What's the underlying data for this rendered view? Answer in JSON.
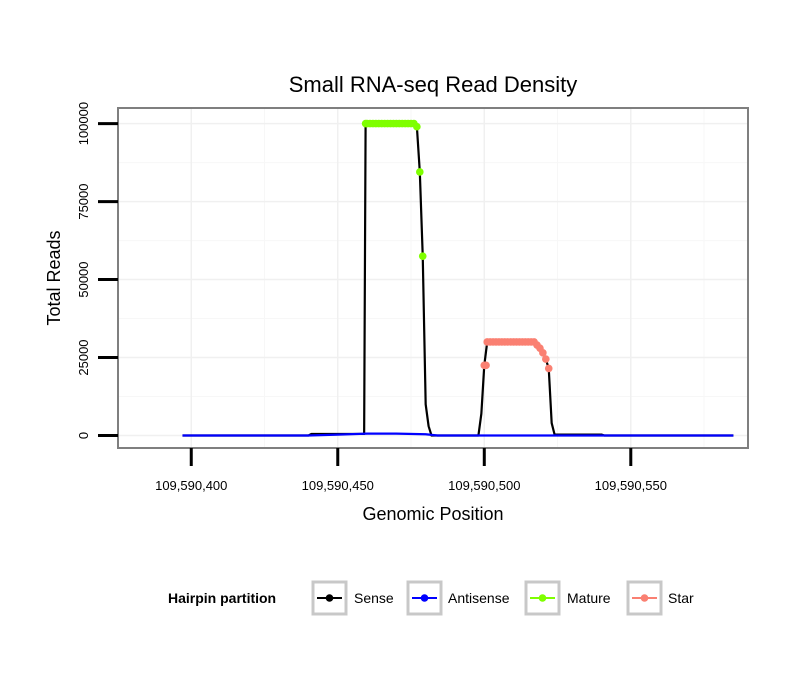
{
  "chart_data": {
    "type": "line",
    "title": "Small RNA-seq Read Density",
    "xlabel": "Genomic Position",
    "ylabel": "Total Reads",
    "xlim": [
      109590375,
      109590590
    ],
    "ylim": [
      -4000,
      105000
    ],
    "x_ticks": [
      109590400,
      109590450,
      109590500,
      109590550
    ],
    "x_tick_labels": [
      "109,590,400",
      "109,590,450",
      "109,590,500",
      "109,590,550"
    ],
    "y_ticks": [
      0,
      25000,
      50000,
      75000,
      100000
    ],
    "y_tick_labels": [
      "0",
      "25000",
      "50000",
      "75000",
      "100000"
    ],
    "grid": true,
    "legend": {
      "title": "Hairpin partition",
      "position": "bottom",
      "entries": [
        {
          "name": "Sense",
          "color": "#000000"
        },
        {
          "name": "Antisense",
          "color": "#0000ff"
        },
        {
          "name": "Mature",
          "color": "#7fff00"
        },
        {
          "name": "Star",
          "color": "#fa8072"
        }
      ]
    },
    "series": [
      {
        "name": "Sense",
        "color": "#000000",
        "kind": "line",
        "points": [
          [
            109590397,
            0
          ],
          [
            109590440,
            0
          ],
          [
            109590441,
            500
          ],
          [
            109590459,
            500
          ],
          [
            109590459.5,
            100000
          ],
          [
            109590476,
            100000
          ],
          [
            109590477,
            99000
          ],
          [
            109590478,
            84500
          ],
          [
            109590479,
            57500
          ],
          [
            109590480,
            10000
          ],
          [
            109590481,
            3000
          ],
          [
            109590482,
            0
          ],
          [
            109590498,
            0
          ],
          [
            109590499,
            7000
          ],
          [
            109590500,
            22500
          ],
          [
            109590501,
            30000
          ],
          [
            109590517,
            30000
          ],
          [
            109590518,
            29000
          ],
          [
            109590519,
            28000
          ],
          [
            109590520,
            26500
          ],
          [
            109590521,
            24500
          ],
          [
            109590522,
            21500
          ],
          [
            109590523,
            4000
          ],
          [
            109590524,
            300
          ],
          [
            109590540,
            300
          ],
          [
            109590541,
            0
          ],
          [
            109590585,
            0
          ]
        ]
      },
      {
        "name": "Antisense",
        "color": "#0000ff",
        "kind": "line",
        "points": [
          [
            109590397,
            0
          ],
          [
            109590440,
            0
          ],
          [
            109590450,
            300
          ],
          [
            109590460,
            600
          ],
          [
            109590470,
            600
          ],
          [
            109590480,
            400
          ],
          [
            109590484,
            0
          ],
          [
            109590585,
            0
          ]
        ]
      },
      {
        "name": "Mature",
        "color": "#7fff00",
        "kind": "points",
        "points": [
          [
            109590459.5,
            100000
          ],
          [
            109590460,
            100000
          ],
          [
            109590461,
            100000
          ],
          [
            109590462,
            100000
          ],
          [
            109590463,
            100000
          ],
          [
            109590464,
            100000
          ],
          [
            109590465,
            100000
          ],
          [
            109590466,
            100000
          ],
          [
            109590467,
            100000
          ],
          [
            109590468,
            100000
          ],
          [
            109590469,
            100000
          ],
          [
            109590470,
            100000
          ],
          [
            109590471,
            100000
          ],
          [
            109590472,
            100000
          ],
          [
            109590473,
            100000
          ],
          [
            109590474,
            100000
          ],
          [
            109590475,
            100000
          ],
          [
            109590476,
            100000
          ],
          [
            109590477,
            99000
          ],
          [
            109590478,
            84500
          ],
          [
            109590479,
            57500
          ]
        ]
      },
      {
        "name": "Star",
        "color": "#fa8072",
        "kind": "points",
        "points": [
          [
            109590500,
            22500
          ],
          [
            109590500.6,
            22500
          ],
          [
            109590501,
            30000
          ],
          [
            109590502,
            30000
          ],
          [
            109590503,
            30000
          ],
          [
            109590504,
            30000
          ],
          [
            109590505,
            30000
          ],
          [
            109590506,
            30000
          ],
          [
            109590507,
            30000
          ],
          [
            109590508,
            30000
          ],
          [
            109590509,
            30000
          ],
          [
            109590510,
            30000
          ],
          [
            109590511,
            30000
          ],
          [
            109590512,
            30000
          ],
          [
            109590513,
            30000
          ],
          [
            109590514,
            30000
          ],
          [
            109590515,
            30000
          ],
          [
            109590516,
            30000
          ],
          [
            109590517,
            30000
          ],
          [
            109590518,
            29000
          ],
          [
            109590519,
            28000
          ],
          [
            109590520,
            26500
          ],
          [
            109590521,
            24500
          ],
          [
            109590522,
            21500
          ]
        ]
      }
    ]
  }
}
